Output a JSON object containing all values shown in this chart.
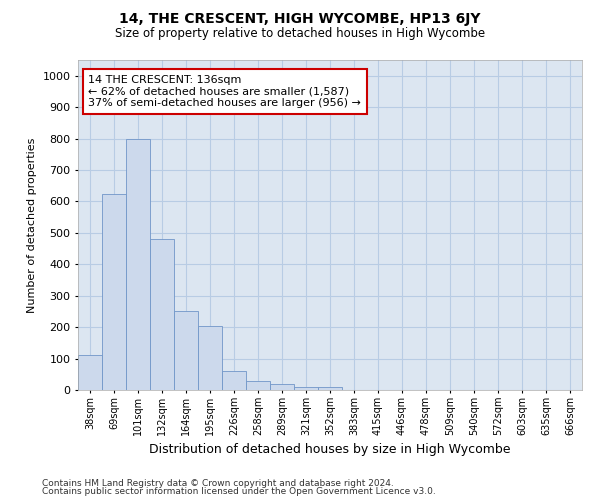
{
  "title": "14, THE CRESCENT, HIGH WYCOMBE, HP13 6JY",
  "subtitle": "Size of property relative to detached houses in High Wycombe",
  "xlabel": "Distribution of detached houses by size in High Wycombe",
  "ylabel": "Number of detached properties",
  "footnote1": "Contains HM Land Registry data © Crown copyright and database right 2024.",
  "footnote2": "Contains public sector information licensed under the Open Government Licence v3.0.",
  "categories": [
    "38sqm",
    "69sqm",
    "101sqm",
    "132sqm",
    "164sqm",
    "195sqm",
    "226sqm",
    "258sqm",
    "289sqm",
    "321sqm",
    "352sqm",
    "383sqm",
    "415sqm",
    "446sqm",
    "478sqm",
    "509sqm",
    "540sqm",
    "572sqm",
    "603sqm",
    "635sqm",
    "666sqm"
  ],
  "values": [
    110,
    625,
    800,
    480,
    250,
    205,
    60,
    30,
    18,
    10,
    10,
    0,
    0,
    0,
    0,
    0,
    0,
    0,
    0,
    0,
    0
  ],
  "bar_color": "#ccd9ec",
  "bar_edge_color": "#7096c8",
  "grid_color": "#b8cce4",
  "background_color": "#dce6f1",
  "annotation_line1": "14 THE CRESCENT: 136sqm",
  "annotation_line2": "← 62% of detached houses are smaller (1,587)",
  "annotation_line3": "37% of semi-detached houses are larger (956) →",
  "annotation_box_color": "#ffffff",
  "annotation_border_color": "#cc0000",
  "ylim": [
    0,
    1050
  ],
  "yticks": [
    0,
    100,
    200,
    300,
    400,
    500,
    600,
    700,
    800,
    900,
    1000
  ]
}
